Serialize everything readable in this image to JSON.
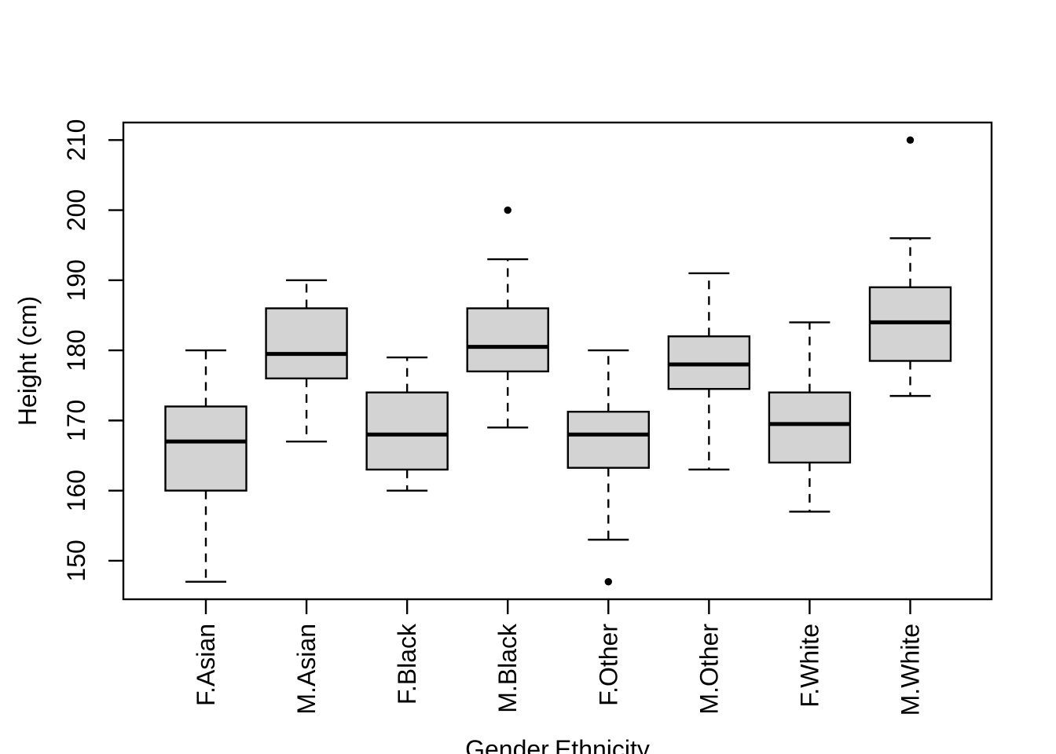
{
  "chart_data": {
    "type": "boxplot",
    "title": "",
    "xlabel": "Gender.Ethnicity",
    "ylabel": "Height (cm)",
    "categories": [
      "F.Asian",
      "M.Asian",
      "F.Black",
      "M.Black",
      "F.Other",
      "M.Other",
      "F.White",
      "M.White"
    ],
    "y_ticks": [
      150,
      160,
      170,
      180,
      190,
      200,
      210
    ],
    "ylim": [
      144.5,
      212.5
    ],
    "grid": "off",
    "legend": "none",
    "box_fill_color": "#d3d3d3",
    "line_color": "#000000",
    "background_color": "#ffffff",
    "boxes": [
      {
        "category": "F.Asian",
        "whisker_low": 147,
        "q1": 160,
        "median": 167,
        "q3": 172,
        "whisker_high": 180,
        "outliers": []
      },
      {
        "category": "M.Asian",
        "whisker_low": 167,
        "q1": 176,
        "median": 179.5,
        "q3": 186,
        "whisker_high": 190,
        "outliers": []
      },
      {
        "category": "F.Black",
        "whisker_low": 160,
        "q1": 163,
        "median": 168,
        "q3": 174,
        "whisker_high": 179,
        "outliers": []
      },
      {
        "category": "M.Black",
        "whisker_low": 169,
        "q1": 177,
        "median": 180.5,
        "q3": 186,
        "whisker_high": 193,
        "outliers": [
          200
        ]
      },
      {
        "category": "F.Other",
        "whisker_low": 153,
        "q1": 163.25,
        "median": 168,
        "q3": 171.25,
        "whisker_high": 180,
        "outliers": [
          147
        ]
      },
      {
        "category": "M.Other",
        "whisker_low": 163,
        "q1": 174.5,
        "median": 178,
        "q3": 182,
        "whisker_high": 191,
        "outliers": []
      },
      {
        "category": "F.White",
        "whisker_low": 157,
        "q1": 164,
        "median": 169.5,
        "q3": 174,
        "whisker_high": 184,
        "outliers": []
      },
      {
        "category": "M.White",
        "whisker_low": 173.5,
        "q1": 178.5,
        "median": 184,
        "q3": 189,
        "whisker_high": 196,
        "outliers": [
          210
        ]
      }
    ]
  }
}
